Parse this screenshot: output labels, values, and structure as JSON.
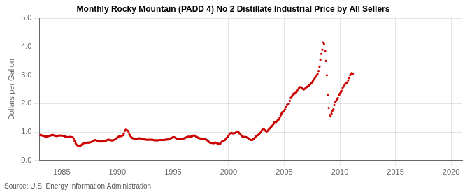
{
  "chart_data": {
    "type": "scatter",
    "title": "Monthly Rocky Mountain (PADD 4) No 2 Distillate Industrial Price by All Sellers",
    "ylabel": "Dollars per Gallon",
    "annotations": [
      "Source: U.S. Energy Information Administration"
    ],
    "color": "#cc0000",
    "grid": true,
    "xlim": [
      1983,
      2021
    ],
    "xticks": [
      1985,
      1990,
      1995,
      2000,
      2005,
      2010,
      2015,
      2020
    ],
    "ylim": [
      0.0,
      5.0
    ],
    "yticks": [
      {
        "value": 0.0,
        "label": "0.0"
      },
      {
        "value": 1.0,
        "label": "1.0"
      },
      {
        "value": 2.0,
        "label": "2.0"
      },
      {
        "value": 3.0,
        "label": "3.0"
      },
      {
        "value": 4.0,
        "label": "4.0"
      },
      {
        "value": 5.0,
        "label": "5.0"
      }
    ],
    "x": [
      1983.0,
      1983.08,
      1983.17,
      1983.25,
      1983.33,
      1983.42,
      1983.5,
      1983.58,
      1983.67,
      1983.75,
      1983.83,
      1983.92,
      1984.0,
      1984.08,
      1984.17,
      1984.25,
      1984.33,
      1984.42,
      1984.5,
      1984.58,
      1984.67,
      1984.75,
      1984.83,
      1984.92,
      1985.0,
      1985.08,
      1985.17,
      1985.25,
      1985.33,
      1985.42,
      1985.5,
      1985.58,
      1985.67,
      1985.75,
      1985.83,
      1985.92,
      1986.0,
      1986.08,
      1986.17,
      1986.25,
      1986.33,
      1986.42,
      1986.5,
      1986.58,
      1986.67,
      1986.75,
      1986.83,
      1986.92,
      1987.0,
      1987.08,
      1987.17,
      1987.25,
      1987.33,
      1987.42,
      1987.5,
      1987.58,
      1987.67,
      1987.75,
      1987.83,
      1987.92,
      1988.0,
      1988.08,
      1988.17,
      1988.25,
      1988.33,
      1988.42,
      1988.5,
      1988.58,
      1988.67,
      1988.75,
      1988.83,
      1988.92,
      1989.0,
      1989.08,
      1989.17,
      1989.25,
      1989.33,
      1989.42,
      1989.5,
      1989.58,
      1989.67,
      1989.75,
      1989.83,
      1989.92,
      1990.0,
      1990.08,
      1990.17,
      1990.25,
      1990.33,
      1990.42,
      1990.5,
      1990.58,
      1990.67,
      1990.75,
      1990.83,
      1990.92,
      1991.0,
      1991.08,
      1991.17,
      1991.25,
      1991.33,
      1991.42,
      1991.5,
      1991.58,
      1991.67,
      1991.75,
      1991.83,
      1991.92,
      1992.0,
      1992.08,
      1992.17,
      1992.25,
      1992.33,
      1992.42,
      1992.5,
      1992.58,
      1992.67,
      1992.75,
      1992.83,
      1992.92,
      1993.0,
      1993.08,
      1993.17,
      1993.25,
      1993.33,
      1993.42,
      1993.5,
      1993.58,
      1993.67,
      1993.75,
      1993.83,
      1993.92,
      1994.0,
      1994.08,
      1994.17,
      1994.25,
      1994.33,
      1994.42,
      1994.5,
      1994.58,
      1994.67,
      1994.75,
      1994.83,
      1994.92,
      1995.0,
      1995.08,
      1995.17,
      1995.25,
      1995.33,
      1995.42,
      1995.5,
      1995.58,
      1995.67,
      1995.75,
      1995.83,
      1995.92,
      1996.0,
      1996.08,
      1996.17,
      1996.25,
      1996.33,
      1996.42,
      1996.5,
      1996.58,
      1996.67,
      1996.75,
      1996.83,
      1996.92,
      1997.0,
      1997.08,
      1997.17,
      1997.25,
      1997.33,
      1997.42,
      1997.5,
      1997.58,
      1997.67,
      1997.75,
      1997.83,
      1997.92,
      1998.0,
      1998.08,
      1998.17,
      1998.25,
      1998.33,
      1998.42,
      1998.5,
      1998.58,
      1998.67,
      1998.75,
      1998.83,
      1998.92,
      1999.0,
      1999.08,
      1999.17,
      1999.25,
      1999.33,
      1999.42,
      1999.5,
      1999.58,
      1999.67,
      1999.75,
      1999.83,
      1999.92,
      2000.0,
      2000.08,
      2000.17,
      2000.25,
      2000.33,
      2000.42,
      2000.5,
      2000.58,
      2000.67,
      2000.75,
      2000.83,
      2000.92,
      2001.0,
      2001.08,
      2001.17,
      2001.25,
      2001.33,
      2001.42,
      2001.5,
      2001.58,
      2001.67,
      2001.75,
      2001.83,
      2001.92,
      2002.0,
      2002.08,
      2002.17,
      2002.25,
      2002.33,
      2002.42,
      2002.5,
      2002.58,
      2002.67,
      2002.75,
      2002.83,
      2002.92,
      2003.0,
      2003.08,
      2003.17,
      2003.25,
      2003.33,
      2003.42,
      2003.5,
      2003.58,
      2003.67,
      2003.75,
      2003.83,
      2003.92,
      2004.0,
      2004.08,
      2004.17,
      2004.25,
      2004.33,
      2004.42,
      2004.5,
      2004.58,
      2004.67,
      2004.75,
      2004.83,
      2004.92,
      2005.0,
      2005.08,
      2005.17,
      2005.25,
      2005.33,
      2005.42,
      2005.5,
      2005.58,
      2005.67,
      2005.75,
      2005.83,
      2005.92,
      2006.0,
      2006.08,
      2006.17,
      2006.25,
      2006.33,
      2006.42,
      2006.5,
      2006.58,
      2006.67,
      2006.75,
      2006.83,
      2006.92,
      2007.0,
      2007.08,
      2007.17,
      2007.25,
      2007.33,
      2007.42,
      2007.5,
      2007.58,
      2007.67,
      2007.75,
      2007.83,
      2007.92,
      2008.0,
      2008.08,
      2008.17,
      2008.25,
      2008.33,
      2008.42,
      2008.5,
      2008.58,
      2008.67,
      2008.75,
      2008.83,
      2008.92,
      2009.0,
      2009.08,
      2009.17,
      2009.25,
      2009.33,
      2009.42,
      2009.5,
      2009.58,
      2009.67,
      2009.75,
      2009.83,
      2009.92,
      2010.0,
      2010.08,
      2010.17,
      2010.25,
      2010.33,
      2010.42,
      2010.5,
      2010.58,
      2010.67,
      2010.75,
      2010.83,
      2010.92,
      2011.0,
      2011.08,
      2011.17
    ],
    "values": [
      0.88,
      0.9,
      0.89,
      0.88,
      0.87,
      0.86,
      0.85,
      0.84,
      0.84,
      0.85,
      0.86,
      0.87,
      0.88,
      0.89,
      0.9,
      0.89,
      0.88,
      0.87,
      0.86,
      0.86,
      0.87,
      0.88,
      0.88,
      0.88,
      0.88,
      0.87,
      0.87,
      0.86,
      0.84,
      0.83,
      0.82,
      0.82,
      0.83,
      0.83,
      0.82,
      0.82,
      0.81,
      0.76,
      0.68,
      0.6,
      0.56,
      0.53,
      0.52,
      0.51,
      0.52,
      0.54,
      0.57,
      0.6,
      0.61,
      0.62,
      0.62,
      0.62,
      0.63,
      0.63,
      0.63,
      0.64,
      0.65,
      0.67,
      0.69,
      0.71,
      0.72,
      0.71,
      0.7,
      0.69,
      0.68,
      0.67,
      0.67,
      0.67,
      0.67,
      0.68,
      0.68,
      0.68,
      0.7,
      0.72,
      0.73,
      0.73,
      0.72,
      0.71,
      0.71,
      0.7,
      0.72,
      0.73,
      0.75,
      0.78,
      0.8,
      0.83,
      0.85,
      0.85,
      0.86,
      0.87,
      0.89,
      0.95,
      1.04,
      1.08,
      1.07,
      1.05,
      1.0,
      0.92,
      0.87,
      0.82,
      0.79,
      0.78,
      0.77,
      0.76,
      0.76,
      0.76,
      0.77,
      0.78,
      0.78,
      0.78,
      0.77,
      0.76,
      0.75,
      0.74,
      0.74,
      0.73,
      0.73,
      0.73,
      0.73,
      0.73,
      0.73,
      0.73,
      0.73,
      0.72,
      0.71,
      0.71,
      0.71,
      0.71,
      0.71,
      0.72,
      0.72,
      0.72,
      0.72,
      0.72,
      0.72,
      0.73,
      0.73,
      0.73,
      0.74,
      0.74,
      0.76,
      0.77,
      0.79,
      0.8,
      0.82,
      0.82,
      0.81,
      0.79,
      0.77,
      0.76,
      0.76,
      0.76,
      0.76,
      0.76,
      0.77,
      0.77,
      0.78,
      0.79,
      0.81,
      0.82,
      0.84,
      0.83,
      0.83,
      0.84,
      0.84,
      0.86,
      0.88,
      0.88,
      0.87,
      0.84,
      0.82,
      0.8,
      0.79,
      0.78,
      0.77,
      0.77,
      0.76,
      0.76,
      0.75,
      0.74,
      0.73,
      0.71,
      0.68,
      0.65,
      0.63,
      0.62,
      0.62,
      0.61,
      0.61,
      0.62,
      0.63,
      0.62,
      0.6,
      0.59,
      0.58,
      0.6,
      0.64,
      0.67,
      0.68,
      0.7,
      0.72,
      0.76,
      0.8,
      0.84,
      0.88,
      0.93,
      0.96,
      0.97,
      0.96,
      0.95,
      0.96,
      0.97,
      0.99,
      1.02,
      1.02,
      0.98,
      0.95,
      0.91,
      0.87,
      0.84,
      0.83,
      0.83,
      0.83,
      0.82,
      0.8,
      0.79,
      0.77,
      0.74,
      0.72,
      0.72,
      0.73,
      0.76,
      0.79,
      0.83,
      0.87,
      0.88,
      0.9,
      0.93,
      0.97,
      1.01,
      1.06,
      1.12,
      1.1,
      1.07,
      1.04,
      1.02,
      1.04,
      1.08,
      1.12,
      1.15,
      1.18,
      1.22,
      1.27,
      1.33,
      1.36,
      1.35,
      1.38,
      1.42,
      1.44,
      1.5,
      1.58,
      1.65,
      1.7,
      1.72,
      1.75,
      1.8,
      1.88,
      1.95,
      1.98,
      2.0,
      2.1,
      2.2,
      2.25,
      2.3,
      2.35,
      2.35,
      2.38,
      2.4,
      2.45,
      2.5,
      2.55,
      2.58,
      2.58,
      2.55,
      2.52,
      2.5,
      2.52,
      2.55,
      2.58,
      2.6,
      2.62,
      2.65,
      2.68,
      2.72,
      2.75,
      2.8,
      2.85,
      2.9,
      2.95,
      3.0,
      3.05,
      3.15,
      3.3,
      3.55,
      3.75,
      3.9,
      4.15,
      4.1,
      3.85,
      3.5,
      3.0,
      2.3,
      1.85,
      1.6,
      1.55,
      1.65,
      1.75,
      1.8,
      1.95,
      2.05,
      2.1,
      2.15,
      2.2,
      2.3,
      2.35,
      2.4,
      2.45,
      2.55,
      2.6,
      2.65,
      2.7,
      2.72,
      2.75,
      2.82,
      2.9,
      3.0,
      3.05,
      3.08,
      3.05
    ]
  }
}
